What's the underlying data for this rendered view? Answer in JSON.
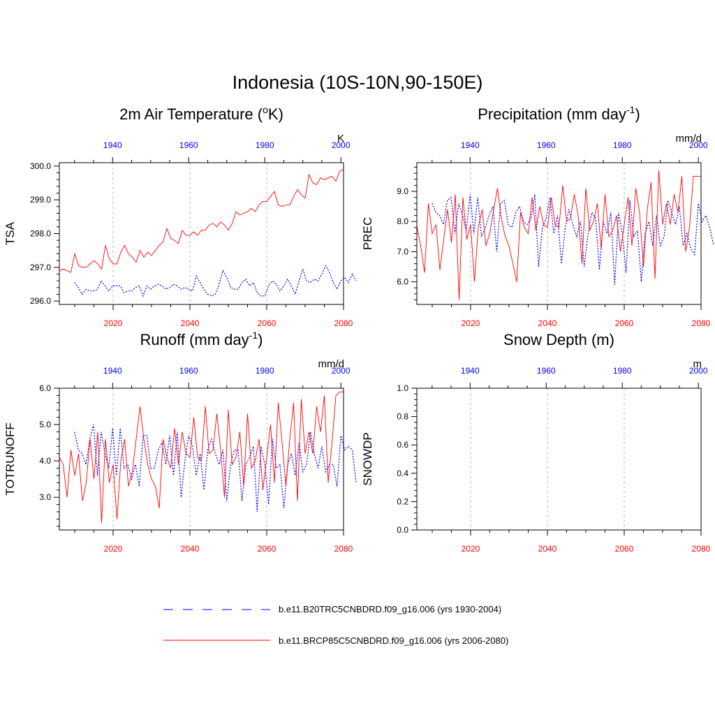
{
  "title": "Indonesia (10S-10N,90-150E)",
  "colors": {
    "historical": "#0000ff",
    "future": "#ff0000",
    "grid": "#b0b0b0",
    "axis": "#000000"
  },
  "chart_data": [
    {
      "type": "line",
      "title": "2m Air Temperature (oK)",
      "title_parts": [
        "2m Air Temperature (",
        "o",
        "K)"
      ],
      "ylabel": "TSA",
      "units": "K",
      "ylim": [
        295.9,
        300.1
      ],
      "yticks": [
        296.0,
        297.0,
        298.0,
        299.0,
        300.0
      ],
      "ytick_labels": [
        "296.0",
        "297.0",
        "298.0",
        "299.0",
        "300.0"
      ],
      "top_axis": {
        "labels": [
          "1940",
          "1960",
          "1980",
          "2000"
        ],
        "years": [
          1940,
          1960,
          1980,
          2000
        ],
        "range": [
          1926,
          2000.7
        ]
      },
      "bottom_axis": {
        "labels": [
          "2020",
          "2040",
          "2060",
          "2080"
        ],
        "years": [
          2020,
          2040,
          2060,
          2080
        ],
        "range": [
          2006,
          2080
        ]
      },
      "series": [
        {
          "name": "b.e11.B20TRC5CNBDRD.f09_g16.006 (yrs 1930-2004)",
          "role": "historical",
          "x_start": 1930,
          "values": [
            296.55,
            296.4,
            296.2,
            296.35,
            296.3,
            296.3,
            296.35,
            296.6,
            296.45,
            296.3,
            296.45,
            296.45,
            296.45,
            296.25,
            296.3,
            296.3,
            296.4,
            296.45,
            296.15,
            296.45,
            296.35,
            296.45,
            296.5,
            296.45,
            296.35,
            296.4,
            296.5,
            296.45,
            296.35,
            296.4,
            296.35,
            296.3,
            296.75,
            296.55,
            296.35,
            296.2,
            296.15,
            296.2,
            296.5,
            296.9,
            296.7,
            296.4,
            296.35,
            296.35,
            296.55,
            296.65,
            296.45,
            296.55,
            296.25,
            296.15,
            296.15,
            296.45,
            296.6,
            296.5,
            296.3,
            296.45,
            296.65,
            296.45,
            296.2,
            296.6,
            296.95,
            296.6,
            296.55,
            296.65,
            296.6,
            296.8,
            297.05,
            296.85,
            296.55,
            296.35,
            296.6,
            296.7,
            296.55,
            296.8,
            296.6
          ]
        },
        {
          "name": "b.e11.BRCP85C5CNBDRD.f09_g16.006 (yrs 2006-2080)",
          "role": "future",
          "x_start": 2006,
          "values": [
            296.9,
            296.95,
            296.9,
            296.85,
            297.4,
            297.05,
            297.0,
            297.0,
            297.1,
            297.2,
            297.1,
            296.95,
            297.65,
            297.25,
            297.1,
            297.1,
            297.45,
            297.65,
            297.4,
            297.3,
            297.15,
            297.5,
            297.3,
            297.45,
            297.35,
            297.5,
            297.65,
            297.75,
            298.15,
            297.85,
            297.8,
            297.7,
            298.1,
            297.95,
            297.95,
            298.05,
            297.95,
            298.1,
            298.1,
            298.25,
            298.3,
            298.2,
            298.35,
            298.25,
            298.1,
            298.3,
            298.65,
            298.55,
            298.6,
            298.65,
            298.75,
            298.65,
            298.85,
            298.95,
            298.95,
            299.1,
            299.25,
            298.85,
            298.8,
            298.85,
            298.85,
            299.1,
            299.3,
            299.15,
            299.05,
            299.75,
            299.5,
            299.45,
            299.65,
            299.6,
            299.65,
            299.7,
            299.55,
            299.85,
            299.9
          ]
        }
      ]
    },
    {
      "type": "line",
      "title": "Precipitation (mm day-1)",
      "title_parts": [
        "Precipitation (mm day",
        "-1",
        ")"
      ],
      "ylabel": "PREC",
      "units": "mm/d",
      "ylim": [
        5.25,
        9.95
      ],
      "yticks": [
        6.0,
        7.0,
        8.0,
        9.0
      ],
      "ytick_labels": [
        "6.0",
        "7.0",
        "8.0",
        "9.0"
      ],
      "top_axis": {
        "labels": [
          "1940",
          "1960",
          "1980",
          "2000"
        ],
        "years": [
          1940,
          1960,
          1980,
          2000
        ],
        "range": [
          1926,
          2000.7
        ]
      },
      "bottom_axis": {
        "labels": [
          "2020",
          "2040",
          "2060",
          "2080"
        ],
        "years": [
          2020,
          2040,
          2060,
          2080
        ],
        "range": [
          2006,
          2080
        ]
      },
      "series": [
        {
          "name": "b.e11.B20TRC5CNBDRD.f09_g16.006 (yrs 1930-2004)",
          "role": "historical",
          "x_start": 1930,
          "values": [
            8.6,
            8.3,
            8.2,
            7.9,
            8.7,
            8.8,
            7.6,
            8.6,
            8.2,
            7.7,
            8.9,
            7.6,
            8.8,
            7.5,
            7.8,
            8.2,
            8.5,
            7.0,
            8.6,
            8.7,
            7.9,
            7.8,
            8.3,
            8.5,
            8.0,
            7.9,
            8.1,
            8.9,
            6.5,
            7.8,
            8.1,
            8.8,
            7.6,
            8.2,
            6.6,
            7.8,
            8.4,
            7.9,
            7.5,
            8.0,
            6.5,
            7.6,
            8.3,
            8.1,
            6.4,
            8.0,
            7.6,
            8.3,
            5.9,
            8.3,
            7.6,
            6.3,
            8.7,
            7.5,
            7.7,
            6.0,
            7.6,
            8.0,
            7.2,
            8.2,
            7.2,
            7.5,
            8.7,
            8.3,
            7.9,
            8.5,
            7.2,
            7.6,
            7.1,
            6.9,
            8.6,
            8.0,
            8.2,
            7.8,
            7.2
          ]
        },
        {
          "name": "b.e11.BRCP85C5CNBDRD.f09_g16.006 (yrs 2006-2080)",
          "role": "future",
          "x_start": 2006,
          "values": [
            7.85,
            7.2,
            6.3,
            8.6,
            7.6,
            7.9,
            6.4,
            7.4,
            8.4,
            7.3,
            8.9,
            5.4,
            8.8,
            7.4,
            7.9,
            6.0,
            7.8,
            8.4,
            7.2,
            7.6,
            8.4,
            9.1,
            8.1,
            7.5,
            7.2,
            6.6,
            6.0,
            8.3,
            7.8,
            7.6,
            8.8,
            7.7,
            8.5,
            7.9,
            7.8,
            8.8,
            7.9,
            7.8,
            9.2,
            8.0,
            8.1,
            8.9,
            8.2,
            6.6,
            9.1,
            7.7,
            8.0,
            8.6,
            7.1,
            8.9,
            7.5,
            7.7,
            8.2,
            7.0,
            7.9,
            8.8,
            7.2,
            9.1,
            8.3,
            6.5,
            8.4,
            9.3,
            6.1,
            9.7,
            7.9,
            8.6,
            7.9,
            8.9,
            8.3,
            9.5,
            7.0,
            7.8,
            9.5,
            9.5,
            9.5
          ]
        }
      ]
    },
    {
      "type": "line",
      "title": "Runoff (mm day-1)",
      "title_parts": [
        "Runoff (mm day",
        "-1",
        ")"
      ],
      "ylabel": "TOTRUNOFF",
      "units": "mm/d",
      "ylim": [
        2.1,
        6.0
      ],
      "yticks": [
        3.0,
        4.0,
        5.0,
        6.0
      ],
      "ytick_labels": [
        "3.0",
        "4.0",
        "5.0",
        "6.0"
      ],
      "top_axis": {
        "labels": [
          "1940",
          "1960",
          "1980",
          "2000"
        ],
        "years": [
          1940,
          1960,
          1980,
          2000
        ],
        "range": [
          1926,
          2000.7
        ]
      },
      "bottom_axis": {
        "labels": [
          "2020",
          "2040",
          "2060",
          "2080"
        ],
        "years": [
          2020,
          2040,
          2060,
          2080
        ],
        "range": [
          2006,
          2080
        ]
      },
      "series": [
        {
          "name": "b.e11.B20TRC5CNBDRD.f09_g16.006 (yrs 1930-2004)",
          "role": "historical",
          "x_start": 1930,
          "values": [
            4.8,
            4.3,
            4.2,
            3.9,
            4.6,
            5.0,
            3.6,
            4.8,
            4.2,
            3.8,
            4.9,
            3.6,
            4.9,
            3.8,
            3.9,
            3.5,
            3.9,
            3.3,
            4.7,
            4.7,
            3.8,
            3.8,
            4.3,
            4.5,
            3.9,
            4.7,
            3.6,
            4.8,
            3.0,
            4.0,
            4.7,
            4.4,
            3.6,
            4.2,
            3.2,
            4.3,
            4.6,
            4.2,
            3.9,
            4.3,
            2.9,
            3.9,
            4.3,
            4.3,
            2.9,
            3.9,
            4.1,
            4.4,
            2.6,
            4.4,
            3.9,
            2.8,
            4.6,
            3.8,
            3.9,
            2.7,
            3.9,
            4.2,
            3.6,
            4.5,
            3.7,
            3.9,
            4.8,
            4.2,
            3.8,
            4.4,
            3.7,
            3.9,
            3.9,
            3.3,
            4.7,
            4.3,
            4.4,
            4.3,
            3.4
          ]
        },
        {
          "name": "b.e11.BRCP85C5CNBDRD.f09_g16.006 (yrs 2006-2080)",
          "role": "future",
          "x_start": 2006,
          "values": [
            4.1,
            3.9,
            3.0,
            4.3,
            3.6,
            4.2,
            2.9,
            3.4,
            4.6,
            3.5,
            4.8,
            2.3,
            4.6,
            3.4,
            3.9,
            2.4,
            4.0,
            4.6,
            3.3,
            3.7,
            4.6,
            5.5,
            4.6,
            3.9,
            3.5,
            3.3,
            2.7,
            4.6,
            4.1,
            3.8,
            4.9,
            3.9,
            4.8,
            4.2,
            4.1,
            5.2,
            4.1,
            4.0,
            5.5,
            4.2,
            4.3,
            5.3,
            4.3,
            3.0,
            5.4,
            3.9,
            4.1,
            4.8,
            3.3,
            5.3,
            3.8,
            4.0,
            4.6,
            3.2,
            4.1,
            5.0,
            3.4,
            5.6,
            4.5,
            3.3,
            4.6,
            5.6,
            2.9,
            5.7,
            4.2,
            4.8,
            4.2,
            5.5,
            4.8,
            5.8,
            3.4,
            4.5,
            5.8,
            5.9,
            5.9
          ]
        }
      ]
    },
    {
      "type": "line",
      "title": "Snow Depth (m)",
      "title_parts": [
        "Snow Depth (m)",
        "",
        ""
      ],
      "ylabel": "SNOWDP",
      "units": "m",
      "ylim": [
        0,
        1
      ],
      "yticks": [
        0.0,
        0.2,
        0.4,
        0.6,
        0.8,
        1.0
      ],
      "ytick_labels": [
        "0.0",
        "0.2",
        "0.4",
        "0.6",
        "0.8",
        "1.0"
      ],
      "top_axis": {
        "labels": [
          "1940",
          "1960",
          "1980",
          "2000"
        ],
        "years": [
          1940,
          1960,
          1980,
          2000
        ],
        "range": [
          1926,
          2000.7
        ]
      },
      "bottom_axis": {
        "labels": [
          "2020",
          "2040",
          "2060",
          "2080"
        ],
        "years": [
          2020,
          2040,
          2060,
          2080
        ],
        "range": [
          2006,
          2080
        ]
      },
      "series": []
    }
  ],
  "legend": [
    {
      "label": "b.e11.B20TRC5CNBDRD.f09_g16.006 (yrs 1930-2004)",
      "style": "dashed",
      "color": "#0000ff"
    },
    {
      "label": "b.e11.BRCP85C5CNBDRD.f09_g16.006 (yrs 2006-2080)",
      "style": "solid",
      "color": "#ff0000"
    }
  ]
}
